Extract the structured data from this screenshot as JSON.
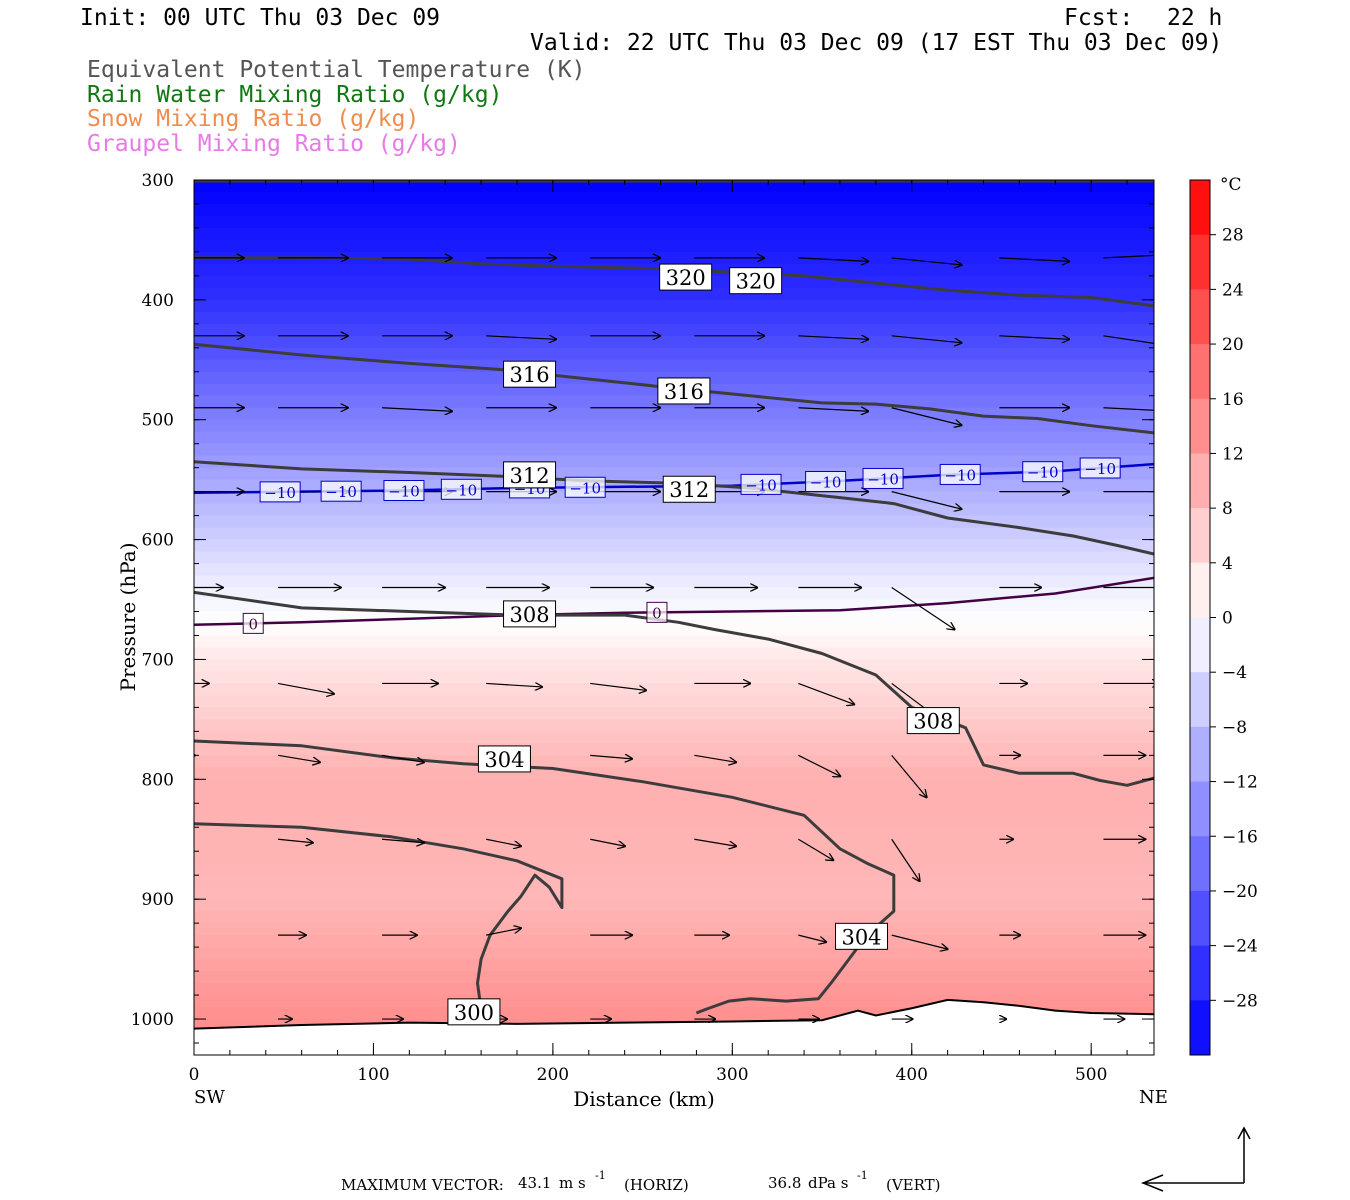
{
  "header": {
    "init": "Init: 00 UTC Thu 03 Dec 09",
    "fcst_label": "Fcst:",
    "fcst_value": "22 h",
    "valid": "Valid: 22 UTC Thu 03 Dec 09 (17 EST Thu 03 Dec 09)"
  },
  "legend": {
    "items": [
      {
        "label": "Equivalent Potential Temperature (K)",
        "color": "#555555"
      },
      {
        "label": "Rain Water Mixing Ratio (g/kg)",
        "color": "#117711"
      },
      {
        "label": "Snow Mixing Ratio (g/kg)",
        "color": "#f08c50"
      },
      {
        "label": "Graupel Mixing Ratio (g/kg)",
        "color": "#e87ae8"
      }
    ]
  },
  "footer": {
    "max_vector_label": "MAXIMUM VECTOR:",
    "horiz_value": "43.1",
    "horiz_unit": "m s",
    "horiz_exp": "-1",
    "horiz_tag": "(HORIZ)",
    "vert_value": "36.8",
    "vert_unit": "dPa s",
    "vert_exp": "-1",
    "vert_tag": "(VERT)"
  },
  "chart_data": {
    "type": "heatmap",
    "xlabel": "Distance (km)",
    "ylabel": "Pressure (hPa)",
    "xlim": [
      0,
      535
    ],
    "ylim": [
      1030,
      300
    ],
    "x_ticks": [
      0,
      100,
      200,
      300,
      400,
      500
    ],
    "y_ticks": [
      300,
      400,
      500,
      600,
      700,
      800,
      900,
      1000
    ],
    "x_end_labels": {
      "left": "SW",
      "right": "NE"
    },
    "colorbar": {
      "unit": "°C",
      "ticks": [
        28,
        24,
        20,
        16,
        12,
        8,
        4,
        0,
        -4,
        -8,
        -12,
        -16,
        -20,
        -24,
        -28
      ],
      "range": [
        -32,
        32
      ],
      "cold_color": "#0000ff",
      "neutral_color": "#ffffff",
      "warm_color": "#ff0000"
    },
    "temperature_isotherms": [
      {
        "value": -10,
        "label": "−10",
        "color": "#0000cc",
        "points": [
          [
            0,
            561
          ],
          [
            60,
            560
          ],
          [
            120,
            559
          ],
          [
            180,
            557
          ],
          [
            240,
            556
          ],
          [
            300,
            555
          ],
          [
            360,
            551
          ],
          [
            420,
            546
          ],
          [
            480,
            543
          ],
          [
            535,
            537
          ]
        ],
        "label_x": [
          48,
          82,
          117,
          149,
          187,
          218,
          316,
          352,
          384,
          427,
          473,
          505
        ]
      },
      {
        "value": 0,
        "label": "0",
        "color": "#440044",
        "points": [
          [
            0,
            671
          ],
          [
            60,
            669
          ],
          [
            120,
            666
          ],
          [
            180,
            663
          ],
          [
            240,
            661
          ],
          [
            300,
            660
          ],
          [
            360,
            659
          ],
          [
            420,
            653
          ],
          [
            480,
            645
          ],
          [
            535,
            632
          ]
        ],
        "label_x": [
          33,
          258
        ]
      }
    ],
    "theta_e_contours": [
      {
        "value": 320,
        "label": "320",
        "points": [
          [
            0,
            365
          ],
          [
            60,
            365
          ],
          [
            120,
            366
          ],
          [
            160,
            370
          ],
          [
            200,
            372
          ],
          [
            260,
            374
          ],
          [
            300,
            377
          ],
          [
            340,
            380
          ],
          [
            380,
            386
          ],
          [
            420,
            392
          ],
          [
            460,
            396
          ],
          [
            500,
            398
          ],
          [
            535,
            405
          ]
        ],
        "label_positions": [
          [
            274,
            381
          ],
          [
            313,
            384
          ]
        ]
      },
      {
        "value": 316,
        "label": "316",
        "points": [
          [
            0,
            437
          ],
          [
            60,
            446
          ],
          [
            120,
            453
          ],
          [
            170,
            458
          ],
          [
            220,
            466
          ],
          [
            270,
            474
          ],
          [
            310,
            480
          ],
          [
            350,
            486
          ],
          [
            380,
            487
          ],
          [
            410,
            491
          ],
          [
            440,
            497
          ],
          [
            470,
            499
          ],
          [
            500,
            505
          ],
          [
            535,
            511
          ]
        ],
        "label_positions": [
          [
            187,
            462
          ],
          [
            273,
            476
          ]
        ]
      },
      {
        "value": 312,
        "label": "312",
        "points": [
          [
            0,
            535
          ],
          [
            60,
            541
          ],
          [
            120,
            544
          ],
          [
            170,
            547
          ],
          [
            220,
            551
          ],
          [
            270,
            553
          ],
          [
            310,
            557
          ],
          [
            360,
            565
          ],
          [
            390,
            570
          ],
          [
            420,
            582
          ],
          [
            460,
            590
          ],
          [
            490,
            597
          ],
          [
            515,
            605
          ],
          [
            535,
            612
          ]
        ],
        "label_positions": [
          [
            187,
            546
          ],
          [
            276,
            558
          ]
        ]
      },
      {
        "value": 308,
        "label": "308",
        "points": [
          [
            0,
            644
          ],
          [
            60,
            657
          ],
          [
            120,
            660
          ],
          [
            180,
            663
          ],
          [
            240,
            663
          ],
          [
            270,
            669
          ],
          [
            290,
            675
          ],
          [
            320,
            683
          ],
          [
            350,
            695
          ],
          [
            380,
            713
          ],
          [
            400,
            740
          ],
          [
            415,
            748
          ],
          [
            430,
            757
          ],
          [
            440,
            788
          ],
          [
            460,
            795
          ],
          [
            490,
            795
          ],
          [
            505,
            801
          ],
          [
            520,
            805
          ],
          [
            535,
            799
          ]
        ],
        "label_positions": [
          [
            187,
            662
          ],
          [
            412,
            751
          ]
        ]
      },
      {
        "value": 304,
        "label": "304",
        "points": [
          [
            0,
            768
          ],
          [
            60,
            772
          ],
          [
            110,
            782
          ],
          [
            150,
            787
          ],
          [
            200,
            791
          ],
          [
            250,
            802
          ],
          [
            300,
            815
          ],
          [
            340,
            830
          ],
          [
            360,
            858
          ],
          [
            375,
            870
          ],
          [
            390,
            880
          ],
          [
            390,
            910
          ],
          [
            375,
            930
          ],
          [
            365,
            950
          ],
          [
            355,
            970
          ],
          [
            348,
            983
          ],
          [
            330,
            985
          ],
          [
            310,
            983
          ],
          [
            298,
            985
          ],
          [
            285,
            992
          ],
          [
            280,
            995
          ]
        ],
        "label_positions": [
          [
            173,
            783
          ],
          [
            372,
            931
          ]
        ]
      },
      {
        "value": 300,
        "label": "300",
        "points": [
          [
            0,
            837
          ],
          [
            60,
            840
          ],
          [
            110,
            848
          ],
          [
            150,
            858
          ],
          [
            180,
            868
          ],
          [
            205,
            883
          ],
          [
            205,
            907
          ],
          [
            198,
            890
          ],
          [
            190,
            880
          ],
          [
            182,
            898
          ],
          [
            175,
            910
          ],
          [
            165,
            930
          ],
          [
            160,
            950
          ],
          [
            158,
            970
          ],
          [
            160,
            992
          ]
        ],
        "label_positions": [
          [
            156,
            994
          ]
        ]
      }
    ],
    "wind_vectors": {
      "note": "horizontal (km-scale) and vertical components are shown as arrows",
      "rows": [
        {
          "p": 300,
          "u": [
            0.0,
            0.0,
            0.0,
            0.0,
            0.0,
            0.0,
            0.0,
            0.0,
            0.0,
            0.0
          ]
        },
        {
          "p": 365,
          "u": [
            1,
            1,
            1,
            1,
            1,
            1,
            1,
            1,
            1,
            1
          ],
          "w": [
            0,
            0,
            0,
            0,
            0,
            0,
            0.1,
            0.2,
            0.1,
            -0.1
          ]
        },
        {
          "p": 430,
          "u": [
            1,
            1,
            1,
            1,
            1,
            1,
            1,
            1,
            1,
            1
          ],
          "w": [
            0,
            0,
            0,
            0.1,
            0,
            0,
            0.1,
            0.2,
            0.1,
            0.3
          ]
        },
        {
          "p": 490,
          "u": [
            1,
            1,
            1,
            1,
            1,
            1,
            1,
            1,
            1,
            1
          ],
          "w": [
            0,
            0,
            0.1,
            0,
            0,
            0,
            0.1,
            0.5,
            0,
            0.1
          ]
        },
        {
          "p": 560,
          "u": [
            1,
            1,
            1,
            1,
            1,
            1,
            1,
            1,
            1,
            1
          ],
          "w": [
            0,
            0,
            0,
            0,
            0,
            0,
            0,
            0.5,
            0,
            0
          ]
        },
        {
          "p": 640,
          "u": [
            0.7,
            0.9,
            0.9,
            0.9,
            0.9,
            0.9,
            0.9,
            0.9,
            0.6,
            0.9
          ],
          "w": [
            0,
            0,
            0,
            0,
            0,
            0,
            0,
            1.2,
            0,
            0
          ]
        },
        {
          "p": 720,
          "u": [
            0.5,
            0.8,
            0.8,
            0.8,
            0.8,
            0.8,
            0.8,
            0.8,
            0.4,
            0.8
          ],
          "w": [
            0,
            0.3,
            0,
            0.1,
            0.2,
            0,
            0.6,
            1.2,
            0,
            0
          ]
        },
        {
          "p": 780,
          "u": [
            0.3,
            0.6,
            0.6,
            0.6,
            0.6,
            0.6,
            0.6,
            0.5,
            0.3,
            0.6
          ],
          "w": [
            0,
            0.2,
            0.2,
            0.1,
            0.1,
            0.2,
            0.6,
            1.2,
            0,
            0
          ]
        },
        {
          "p": 850,
          "u": [
            0.2,
            0.5,
            0.6,
            0.5,
            0.5,
            0.6,
            0.5,
            0.4,
            0.2,
            0.6
          ],
          "w": [
            0,
            0.1,
            0.1,
            0.2,
            0.2,
            0.2,
            0.6,
            1.2,
            0,
            0
          ]
        },
        {
          "p": 930,
          "u": [
            0.2,
            0.4,
            0.5,
            0.5,
            0.6,
            0.5,
            0.4,
            0.8,
            0.3,
            0.6
          ],
          "w": [
            0,
            0,
            0,
            -0.2,
            0,
            0,
            0.2,
            0.4,
            0,
            0
          ]
        },
        {
          "p": 1000,
          "u": [
            0.1,
            0.2,
            0.3,
            0.3,
            0.3,
            0.3,
            0.3,
            0.3,
            0.1,
            0.3
          ],
          "w": [
            0,
            0,
            0,
            0,
            0,
            0,
            0,
            0,
            0,
            0
          ]
        }
      ]
    },
    "temperature_field": {
      "description": "cross-section temperature (°C) by pressure level",
      "levels": [
        300,
        400,
        500,
        560,
        600,
        640,
        670,
        700,
        800,
        900,
        1000
      ],
      "values": [
        -32,
        -26,
        -16,
        -10,
        -6,
        -2,
        0,
        3,
        10,
        9,
        14
      ]
    },
    "surface_pressure": {
      "points": [
        [
          0,
          1008
        ],
        [
          60,
          1005
        ],
        [
          120,
          1003
        ],
        [
          180,
          1004
        ],
        [
          240,
          1003
        ],
        [
          300,
          1002
        ],
        [
          350,
          1001
        ],
        [
          370,
          993
        ],
        [
          380,
          997
        ],
        [
          400,
          991
        ],
        [
          420,
          984
        ],
        [
          440,
          986
        ],
        [
          460,
          989
        ],
        [
          480,
          993
        ],
        [
          500,
          995
        ],
        [
          535,
          996
        ]
      ]
    }
  }
}
